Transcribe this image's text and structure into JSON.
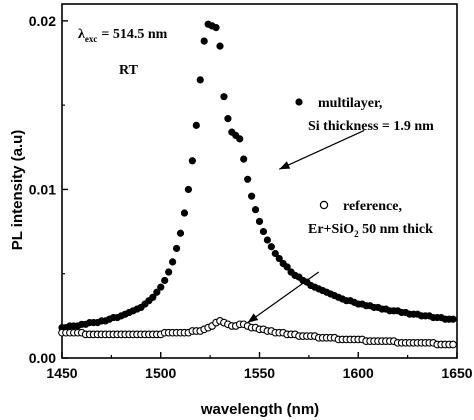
{
  "chart_data": {
    "type": "scatter",
    "xlabel": "wavelength (nm)",
    "ylabel": "PL intensity (a.u)",
    "xlim": [
      1450,
      1650
    ],
    "ylim": [
      0,
      0.021
    ],
    "xticks": [
      1450,
      1500,
      1550,
      1600,
      1650
    ],
    "yticks": [
      0.0,
      0.01,
      0.02
    ],
    "ytick_labels": [
      "0.00",
      "0.01",
      "0.02"
    ],
    "grid": false,
    "annotations": {
      "excitation_lambda": "λ",
      "excitation_sub": "exc",
      "excitation_value": "= 514.5 nm",
      "temperature": "RT",
      "multilayer_line1": "multilayer,",
      "multilayer_line2": "Si thickness = 1.9 nm",
      "reference_line1": "reference,",
      "reference_line2_a": "Er+SiO",
      "reference_line2_sub": "2",
      "reference_line2_b": " 50 nm thick"
    },
    "series": [
      {
        "name": "multilayer, Si thickness = 1.9 nm",
        "marker": "filled-circle",
        "x": [
          1450,
          1452,
          1454,
          1456,
          1458,
          1460,
          1462,
          1464,
          1466,
          1468,
          1470,
          1472,
          1474,
          1476,
          1478,
          1480,
          1482,
          1484,
          1486,
          1488,
          1490,
          1492,
          1494,
          1496,
          1498,
          1500,
          1502,
          1504,
          1506,
          1508,
          1510,
          1512,
          1514,
          1516,
          1518,
          1520,
          1522,
          1524,
          1526,
          1528,
          1530,
          1532,
          1534,
          1536,
          1538,
          1540,
          1542,
          1544,
          1546,
          1548,
          1550,
          1552,
          1554,
          1556,
          1558,
          1560,
          1562,
          1564,
          1566,
          1568,
          1570,
          1572,
          1574,
          1576,
          1578,
          1580,
          1582,
          1584,
          1586,
          1588,
          1590,
          1592,
          1594,
          1596,
          1598,
          1600,
          1602,
          1604,
          1606,
          1608,
          1610,
          1612,
          1614,
          1616,
          1618,
          1620,
          1622,
          1624,
          1626,
          1628,
          1630,
          1632,
          1634,
          1636,
          1638,
          1640,
          1642,
          1644,
          1646,
          1648
        ],
        "y": [
          0.0018,
          0.0018,
          0.0019,
          0.0019,
          0.0019,
          0.002,
          0.002,
          0.0021,
          0.0021,
          0.0021,
          0.0022,
          0.0022,
          0.0023,
          0.0024,
          0.0024,
          0.0025,
          0.0026,
          0.0027,
          0.0028,
          0.0029,
          0.003,
          0.0032,
          0.0034,
          0.0036,
          0.0039,
          0.0042,
          0.0046,
          0.0051,
          0.0057,
          0.0065,
          0.0074,
          0.0086,
          0.01,
          0.0117,
          0.0138,
          0.0165,
          0.0188,
          0.0198,
          0.0197,
          0.0196,
          0.0185,
          0.0155,
          0.0142,
          0.0134,
          0.0132,
          0.013,
          0.0118,
          0.0106,
          0.0096,
          0.0088,
          0.0081,
          0.0075,
          0.007,
          0.0066,
          0.0062,
          0.0059,
          0.0056,
          0.0054,
          0.0051,
          0.0049,
          0.0048,
          0.0046,
          0.0045,
          0.0043,
          0.0042,
          0.0041,
          0.004,
          0.0039,
          0.0038,
          0.0037,
          0.0036,
          0.0035,
          0.0034,
          0.0034,
          0.0033,
          0.0032,
          0.0032,
          0.0031,
          0.0031,
          0.003,
          0.003,
          0.0029,
          0.0029,
          0.0028,
          0.0028,
          0.0028,
          0.0027,
          0.0027,
          0.0026,
          0.0026,
          0.0026,
          0.0025,
          0.0025,
          0.0025,
          0.0024,
          0.0024,
          0.0024,
          0.0023,
          0.0023,
          0.0023
        ]
      },
      {
        "name": "reference, Er+SiO2 50 nm thick",
        "marker": "open-circle",
        "x": [
          1450,
          1452,
          1454,
          1456,
          1458,
          1460,
          1462,
          1464,
          1466,
          1468,
          1470,
          1472,
          1474,
          1476,
          1478,
          1480,
          1482,
          1484,
          1486,
          1488,
          1490,
          1492,
          1494,
          1496,
          1498,
          1500,
          1502,
          1504,
          1506,
          1508,
          1510,
          1512,
          1514,
          1516,
          1518,
          1520,
          1522,
          1524,
          1526,
          1528,
          1530,
          1532,
          1534,
          1536,
          1538,
          1540,
          1542,
          1544,
          1546,
          1548,
          1550,
          1552,
          1554,
          1556,
          1558,
          1560,
          1562,
          1564,
          1566,
          1568,
          1570,
          1572,
          1574,
          1576,
          1578,
          1580,
          1582,
          1584,
          1586,
          1588,
          1590,
          1592,
          1594,
          1596,
          1598,
          1600,
          1602,
          1604,
          1606,
          1608,
          1610,
          1612,
          1614,
          1616,
          1618,
          1620,
          1622,
          1624,
          1626,
          1628,
          1630,
          1632,
          1634,
          1636,
          1638,
          1640,
          1642,
          1644,
          1646,
          1648
        ],
        "y": [
          0.0015,
          0.0015,
          0.0015,
          0.0015,
          0.0015,
          0.0015,
          0.0014,
          0.0014,
          0.0014,
          0.0014,
          0.0014,
          0.0014,
          0.0014,
          0.0014,
          0.0014,
          0.0014,
          0.0014,
          0.0014,
          0.0014,
          0.0014,
          0.0014,
          0.0014,
          0.0014,
          0.0014,
          0.0014,
          0.0014,
          0.0015,
          0.0015,
          0.0015,
          0.0015,
          0.0015,
          0.0015,
          0.0015,
          0.0016,
          0.0016,
          0.0016,
          0.0017,
          0.0018,
          0.0019,
          0.0021,
          0.0022,
          0.0021,
          0.002,
          0.0019,
          0.0019,
          0.002,
          0.002,
          0.0019,
          0.0018,
          0.0018,
          0.0017,
          0.0017,
          0.0016,
          0.0016,
          0.0015,
          0.0015,
          0.0015,
          0.0014,
          0.0014,
          0.0014,
          0.0013,
          0.0013,
          0.0013,
          0.0013,
          0.0013,
          0.0012,
          0.0012,
          0.0012,
          0.0012,
          0.0012,
          0.0011,
          0.0011,
          0.0011,
          0.0011,
          0.0011,
          0.0011,
          0.0011,
          0.001,
          0.001,
          0.001,
          0.001,
          0.001,
          0.001,
          0.001,
          0.001,
          0.0009,
          0.0009,
          0.0009,
          0.0009,
          0.0009,
          0.0009,
          0.0009,
          0.0009,
          0.0009,
          0.0009,
          0.0008,
          0.0008,
          0.0008,
          0.0008,
          0.0008
        ]
      }
    ],
    "arrows": [
      {
        "label": "multilayer",
        "from": [
          1603,
          0.0135
        ],
        "to": [
          1560,
          0.0112
        ]
      },
      {
        "label": "reference",
        "from": [
          1580,
          0.0051
        ],
        "to": [
          1544,
          0.0021
        ]
      }
    ],
    "colors": {
      "marker": "#000000",
      "background": "#ffffff"
    }
  }
}
